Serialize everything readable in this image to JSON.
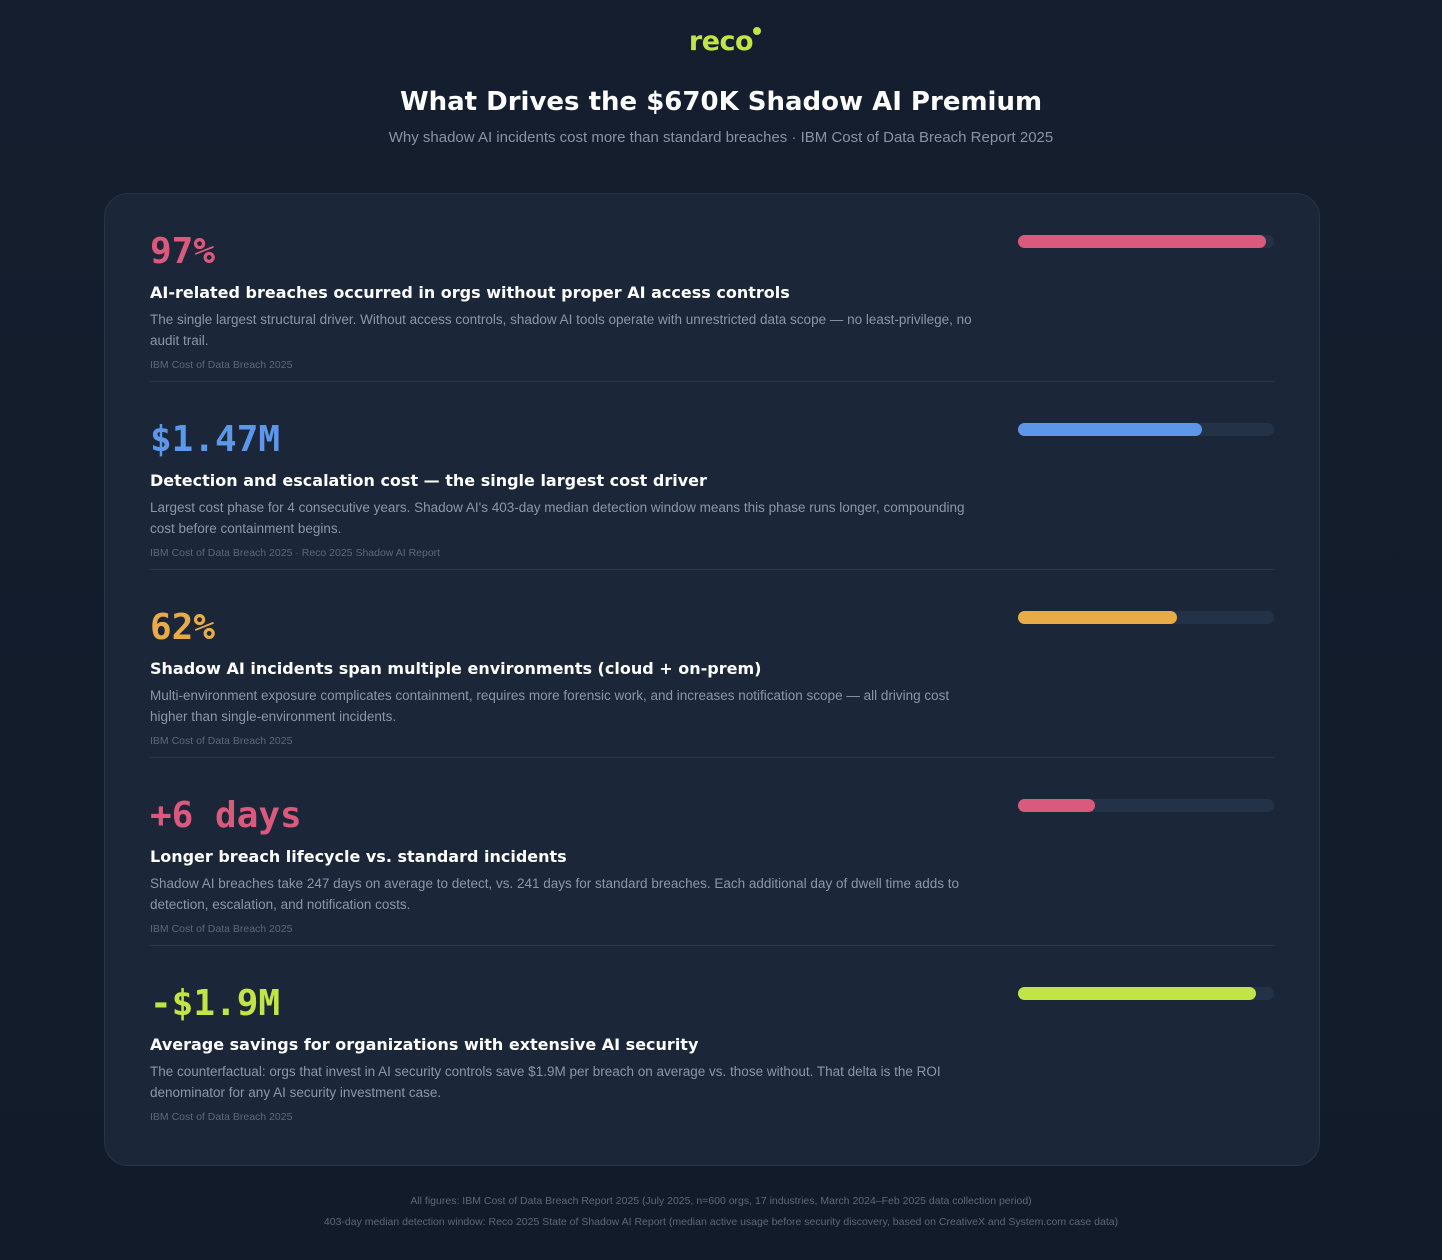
{
  "header": {
    "logo_text": "reco",
    "title": "What Drives the $670K Shadow AI Premium",
    "subtitle": "Why shadow AI incidents cost more than standard breaches · IBM Cost of Data Breach Report 2025"
  },
  "colors": {
    "pink": "#d95a7d",
    "blue": "#5c97ea",
    "orange": "#e8ab47",
    "lime": "#c2e545"
  },
  "rows": [
    {
      "metric": "97%",
      "color": "#d95a7d",
      "bar_fraction": 0.97,
      "headline": "AI-related breaches occurred in orgs without proper AI access controls",
      "description": "The single largest structural driver. Without access controls, shadow AI tools operate with unrestricted data scope — no least-privilege, no audit trail.",
      "source": "IBM Cost of Data Breach 2025"
    },
    {
      "metric": "$1.47M",
      "color": "#5c97ea",
      "bar_fraction": 0.72,
      "headline": "Detection and escalation cost — the single largest cost driver",
      "description": "Largest cost phase for 4 consecutive years. Shadow AI's 403-day median detection window means this phase runs longer, compounding cost before containment begins.",
      "source": "IBM Cost of Data Breach 2025 · Reco 2025 Shadow AI Report"
    },
    {
      "metric": "62%",
      "color": "#e8ab47",
      "bar_fraction": 0.62,
      "headline": "Shadow AI incidents span multiple environments (cloud + on-prem)",
      "description": "Multi-environment exposure complicates containment, requires more forensic work, and increases notification scope — all driving cost higher than single-environment incidents.",
      "source": "IBM Cost of Data Breach 2025"
    },
    {
      "metric": "+6 days",
      "color": "#d95a7d",
      "bar_fraction": 0.3,
      "headline": "Longer breach lifecycle vs. standard incidents",
      "description": "Shadow AI breaches take 247 days on average to detect, vs. 241 days for standard breaches. Each additional day of dwell time adds to detection, escalation, and notification costs.",
      "source": "IBM Cost of Data Breach 2025"
    },
    {
      "metric": "-$1.9M",
      "color": "#c2e545",
      "bar_fraction": 0.93,
      "headline": "Average savings for organizations with extensive AI security",
      "description": "The counterfactual: orgs that invest in AI security controls save $1.9M per breach on average vs. those without. That delta is the ROI denominator for any AI security investment case.",
      "source": "IBM Cost of Data Breach 2025"
    }
  ],
  "footer": {
    "line1": "All figures: IBM Cost of Data Breach Report 2025 (July 2025, n=600 orgs, 17 industries, March 2024–Feb 2025 data collection period)",
    "line2": "403-day median detection window: Reco 2025 State of Shadow AI Report (median active usage before security discovery, based on CreativeX and System.com case data)"
  }
}
